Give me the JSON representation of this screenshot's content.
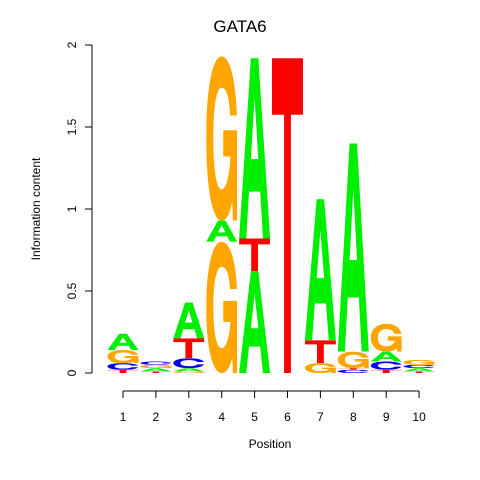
{
  "chart_data": {
    "type": "sequence-logo",
    "title": "GATA6",
    "xlabel": "Position",
    "ylabel": "Information content",
    "ylim": [
      0,
      2
    ],
    "yticks": [
      {
        "v": 0,
        "label": "0"
      },
      {
        "v": 0.5,
        "label": "0.5"
      },
      {
        "v": 1,
        "label": "1"
      },
      {
        "v": 1.5,
        "label": "1.5"
      },
      {
        "v": 2,
        "label": "2"
      }
    ],
    "positions": [
      "1",
      "2",
      "3",
      "4",
      "5",
      "6",
      "7",
      "8",
      "9",
      "10"
    ],
    "colors": {
      "A": "#00ee00",
      "C": "#0000ee",
      "G": "#ffa500",
      "T": "#ff0000"
    },
    "stacks": [
      [
        {
          "letter": "T",
          "height": 0.02
        },
        {
          "letter": "C",
          "height": 0.04
        },
        {
          "letter": "G",
          "height": 0.08
        },
        {
          "letter": "A",
          "height": 0.1
        }
      ],
      [
        {
          "letter": "T",
          "height": 0.01
        },
        {
          "letter": "A",
          "height": 0.02
        },
        {
          "letter": "G",
          "height": 0.02
        },
        {
          "letter": "C",
          "height": 0.02
        }
      ],
      [
        {
          "letter": "G",
          "height": 0.01
        },
        {
          "letter": "A",
          "height": 0.02
        },
        {
          "letter": "C",
          "height": 0.06
        },
        {
          "letter": "T",
          "height": 0.12
        },
        {
          "letter": "A",
          "height": 0.22
        }
      ],
      [
        {
          "letter": "G",
          "height": 0.8
        },
        {
          "letter": "A",
          "height": 0.13
        },
        {
          "letter": "G",
          "height": 1.0
        }
      ],
      [
        {
          "letter": "A",
          "height": 0.62
        },
        {
          "letter": "T",
          "height": 0.2
        },
        {
          "letter": "A",
          "height": 1.1
        }
      ],
      [
        {
          "letter": "T",
          "height": 1.92
        }
      ],
      [
        {
          "letter": "G",
          "height": 0.06
        },
        {
          "letter": "T",
          "height": 0.14
        },
        {
          "letter": "A",
          "height": 0.86
        }
      ],
      [
        {
          "letter": "C",
          "height": 0.02
        },
        {
          "letter": "T",
          "height": 0.01
        },
        {
          "letter": "G",
          "height": 0.1
        },
        {
          "letter": "A",
          "height": 1.27
        }
      ],
      [
        {
          "letter": "T",
          "height": 0.02
        },
        {
          "letter": "C",
          "height": 0.05
        },
        {
          "letter": "A",
          "height": 0.06
        },
        {
          "letter": "G",
          "height": 0.17
        }
      ],
      [
        {
          "letter": "T",
          "height": 0.01
        },
        {
          "letter": "A",
          "height": 0.02
        },
        {
          "letter": "C",
          "height": 0.02
        },
        {
          "letter": "G",
          "height": 0.03
        }
      ]
    ]
  }
}
